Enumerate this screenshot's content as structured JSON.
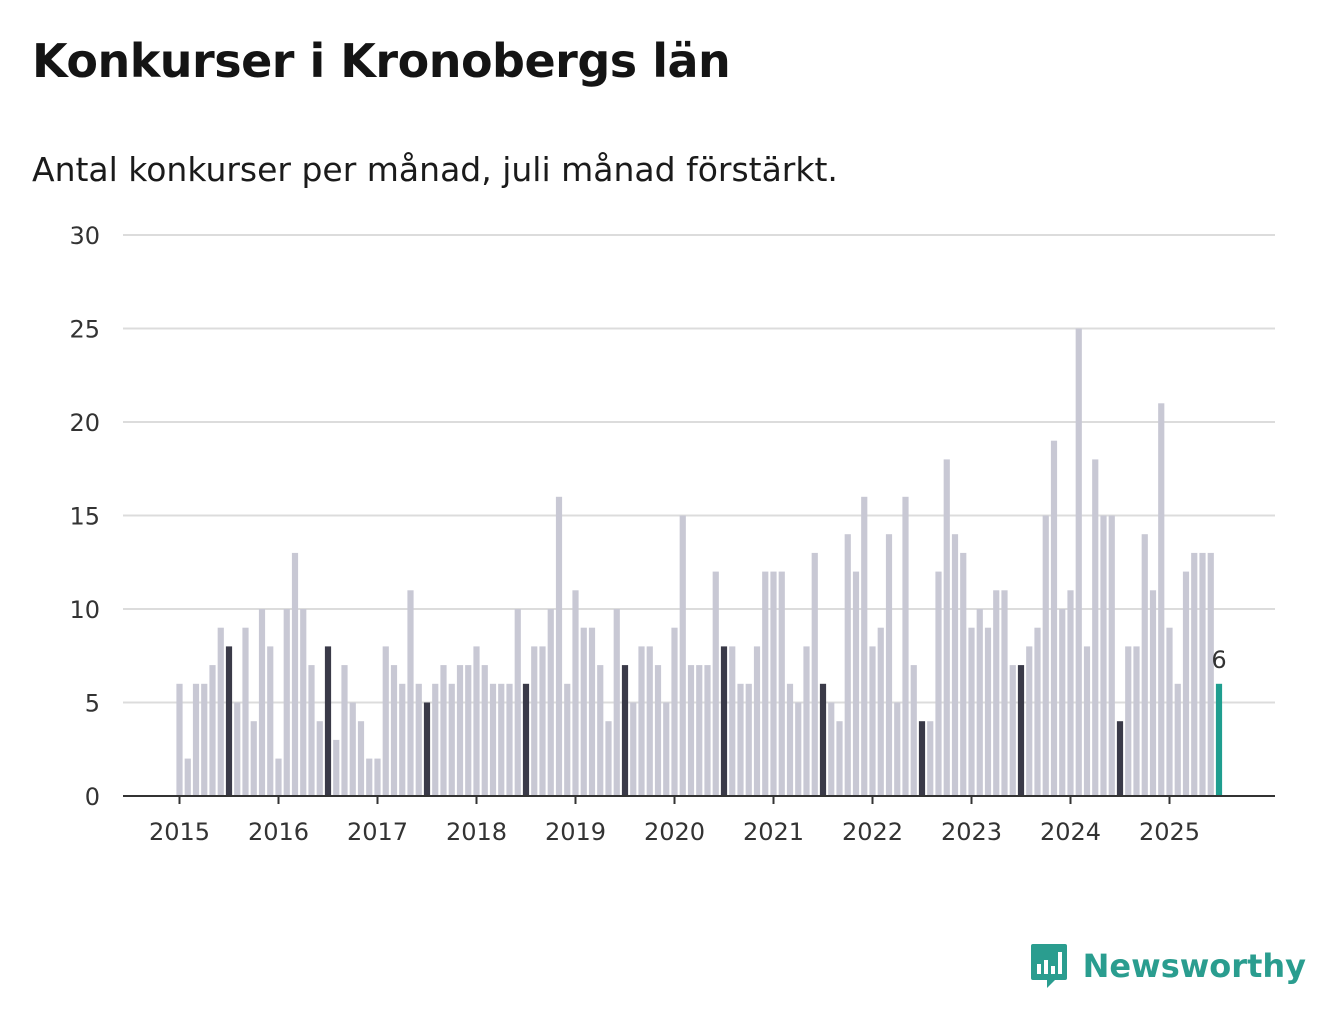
{
  "title": "Konkurser i Kronobergs län",
  "subtitle": "Antal konkurser per månad, juli månad förstärkt.",
  "brand": {
    "name": "Newsworthy",
    "color": "#2a9d8f"
  },
  "colors": {
    "bar": "#c8c8d4",
    "highlight": "#3a3a48",
    "latest": "#1f9e8f",
    "grid": "#dcdcdc",
    "axis": "#333333"
  },
  "chart_data": {
    "type": "bar",
    "ylim": [
      0,
      30
    ],
    "yticks": [
      0,
      5,
      10,
      15,
      20,
      25,
      30
    ],
    "xlabels": [
      "2015",
      "2016",
      "2017",
      "2018",
      "2019",
      "2020",
      "2021",
      "2022",
      "2023",
      "2024",
      "2025"
    ],
    "start": "2015-01",
    "end": "2025-07",
    "highlight_month": 7,
    "latest_label": "6",
    "grid": true,
    "values": [
      6,
      2,
      6,
      6,
      7,
      9,
      8,
      5,
      9,
      4,
      10,
      8,
      2,
      10,
      13,
      10,
      7,
      4,
      8,
      3,
      7,
      5,
      4,
      2,
      2,
      8,
      7,
      6,
      11,
      6,
      5,
      6,
      7,
      6,
      7,
      7,
      8,
      7,
      6,
      6,
      6,
      10,
      6,
      8,
      8,
      10,
      16,
      6,
      11,
      9,
      9,
      7,
      4,
      10,
      7,
      5,
      8,
      8,
      7,
      5,
      9,
      15,
      7,
      7,
      7,
      12,
      8,
      8,
      6,
      6,
      8,
      12,
      12,
      12,
      6,
      5,
      8,
      13,
      6,
      5,
      4,
      14,
      12,
      16,
      8,
      9,
      14,
      5,
      16,
      7,
      4,
      4,
      12,
      18,
      14,
      13,
      9,
      10,
      9,
      11,
      11,
      7,
      7,
      8,
      9,
      15,
      19,
      10,
      11,
      25,
      8,
      18,
      15,
      15,
      4,
      8,
      8,
      14,
      11,
      21,
      9,
      6,
      12,
      13,
      13,
      13,
      6
    ]
  }
}
